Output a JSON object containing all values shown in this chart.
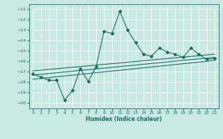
{
  "xlabel": "Humidex (Indice chaleur)",
  "xlim": [
    -0.5,
    23.5
  ],
  "ylim": [
    -20.5,
    -10.5
  ],
  "yticks": [
    -20,
    -19,
    -18,
    -17,
    -16,
    -15,
    -14,
    -13,
    -12,
    -11
  ],
  "xticks": [
    0,
    1,
    2,
    3,
    4,
    5,
    6,
    7,
    8,
    9,
    10,
    11,
    12,
    13,
    14,
    15,
    16,
    17,
    18,
    19,
    20,
    21,
    22,
    23
  ],
  "bg_color": "#c8e8e4",
  "line_color": "#1a6e60",
  "grid_color": "#ffffff",
  "main_x": [
    0,
    1,
    2,
    3,
    4,
    5,
    6,
    7,
    8,
    9,
    10,
    11,
    12,
    13,
    14,
    15,
    16,
    17,
    18,
    19,
    20,
    21,
    22,
    23
  ],
  "main_y": [
    -17.2,
    -17.5,
    -17.8,
    -17.8,
    -19.7,
    -18.8,
    -16.7,
    -17.9,
    -16.5,
    -13.1,
    -13.3,
    -11.2,
    -13.0,
    -14.2,
    -15.3,
    -15.5,
    -14.7,
    -15.1,
    -15.3,
    -15.6,
    -14.7,
    -15.3,
    -15.8,
    -15.7
  ],
  "trend1_x": [
    0,
    23
  ],
  "trend1_y": [
    -16.9,
    -15.3
  ],
  "trend2_x": [
    0,
    23
  ],
  "trend2_y": [
    -17.3,
    -15.6
  ],
  "trend3_x": [
    0,
    23
  ],
  "trend3_y": [
    -17.7,
    -15.9
  ],
  "tick_fontsize": 4.5,
  "xlabel_fontsize": 5.5,
  "xlabel_bold": true
}
